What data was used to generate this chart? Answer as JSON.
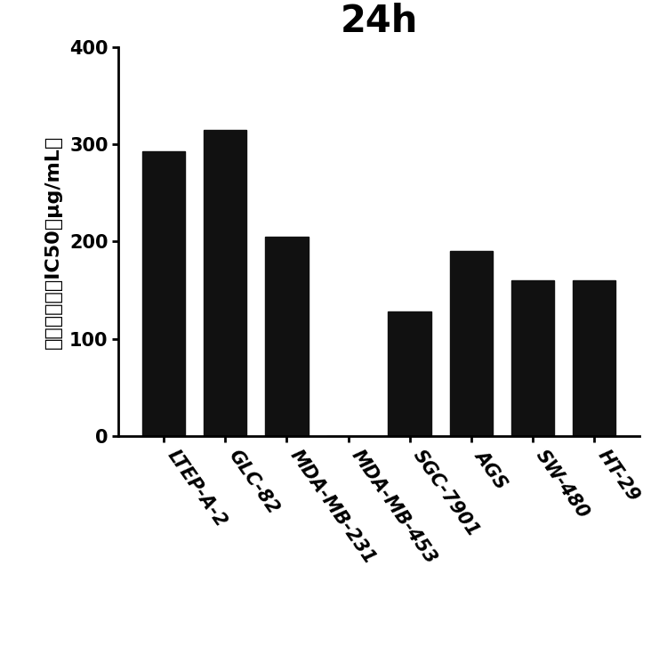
{
  "title": "24h",
  "categories": [
    "LTEP-A-2",
    "GLC-82",
    "MDA-MB-231",
    "MDA-MB-453",
    "SGC-7901",
    "AGS",
    "SW-480",
    "HT-29"
  ],
  "values": [
    293,
    315,
    205,
    0,
    128,
    190,
    160,
    160
  ],
  "bar_color": "#111111",
  "ylabel_chinese": "半数抑制浓度IC50（μg/mL）",
  "ylim": [
    0,
    400
  ],
  "yticks": [
    0,
    100,
    200,
    300,
    400
  ],
  "title_fontsize": 30,
  "ylabel_fontsize": 16,
  "tick_fontsize": 15,
  "xtick_rotation": -55,
  "background_color": "#ffffff"
}
